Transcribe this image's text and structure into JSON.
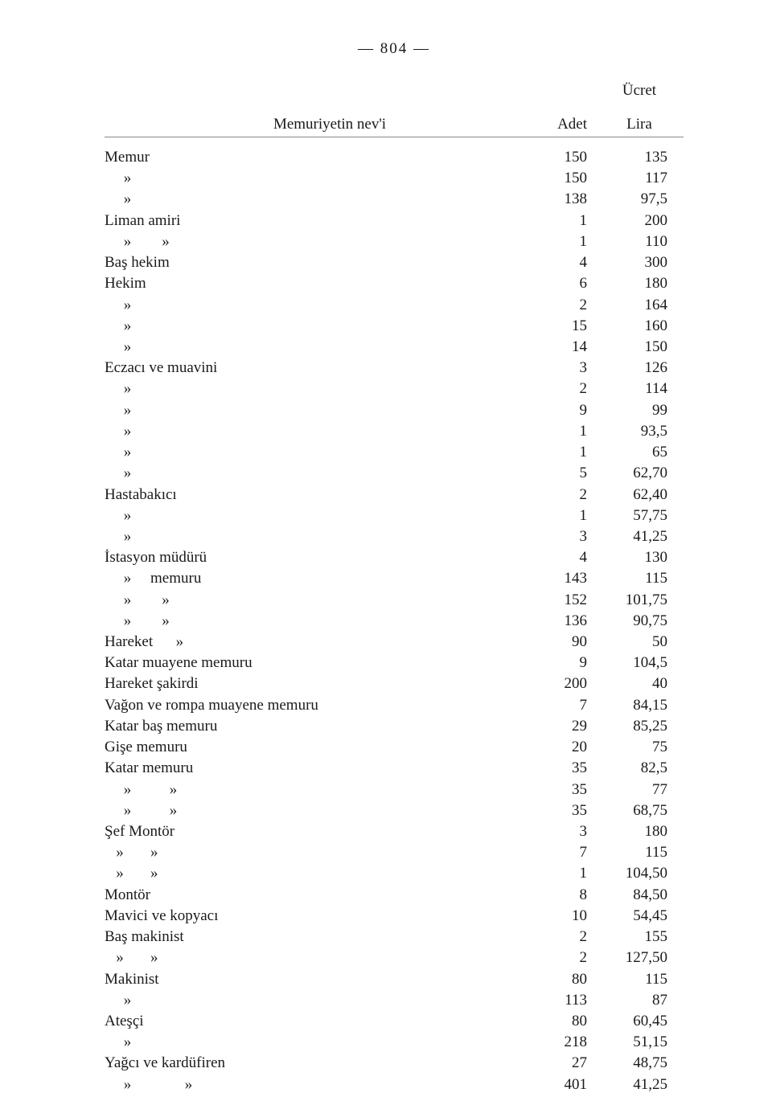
{
  "page": {
    "number": "— 804 —",
    "header": {
      "title": "Memuriyetin nev'i",
      "adet": "Adet",
      "ucret_top": "Ücret",
      "lira": "Lira"
    }
  },
  "rows": [
    {
      "name": "Memur",
      "adet": "150",
      "lira": "135"
    },
    {
      "name": "     »",
      "adet": "150",
      "lira": "117"
    },
    {
      "name": "     »",
      "adet": "138",
      "lira": "97,5"
    },
    {
      "name": "Liman amiri",
      "adet": "1",
      "lira": "200"
    },
    {
      "name": "     »        »",
      "adet": "1",
      "lira": "110"
    },
    {
      "name": "Baş hekim",
      "adet": "4",
      "lira": "300"
    },
    {
      "name": "Hekim",
      "adet": "6",
      "lira": "180"
    },
    {
      "name": "     »",
      "adet": "2",
      "lira": "164"
    },
    {
      "name": "     »",
      "adet": "15",
      "lira": "160"
    },
    {
      "name": "     »",
      "adet": "14",
      "lira": "150"
    },
    {
      "name": "Eczacı ve muavini",
      "adet": "3",
      "lira": "126"
    },
    {
      "name": "     »",
      "adet": "2",
      "lira": "114"
    },
    {
      "name": "     »",
      "adet": "9",
      "lira": "99"
    },
    {
      "name": "     »",
      "adet": "1",
      "lira": "93,5"
    },
    {
      "name": "     »",
      "adet": "1",
      "lira": "65"
    },
    {
      "name": "     »",
      "adet": "5",
      "lira": "62,70"
    },
    {
      "name": "Hastabakıcı",
      "adet": "2",
      "lira": "62,40"
    },
    {
      "name": "     »",
      "adet": "1",
      "lira": "57,75"
    },
    {
      "name": "     »",
      "adet": "3",
      "lira": "41,25"
    },
    {
      "name": "İstasyon müdürü",
      "adet": "4",
      "lira": "130"
    },
    {
      "name": "     »     memuru",
      "adet": "143",
      "lira": "115"
    },
    {
      "name": "     »        »",
      "adet": "152",
      "lira": "101,75"
    },
    {
      "name": "     »        »",
      "adet": "136",
      "lira": "90,75"
    },
    {
      "name": "Hareket      »",
      "adet": "90",
      "lira": "50"
    },
    {
      "name": "Katar muayene memuru",
      "adet": "9",
      "lira": "104,5"
    },
    {
      "name": "Hareket şakirdi",
      "adet": "200",
      "lira": "40"
    },
    {
      "name": "Vağon ve rompa muayene memuru",
      "adet": "7",
      "lira": "84,15"
    },
    {
      "name": "Katar baş memuru",
      "adet": "29",
      "lira": "85,25"
    },
    {
      "name": "Gişe memuru",
      "adet": "20",
      "lira": "75"
    },
    {
      "name": "Katar memuru",
      "adet": "35",
      "lira": "82,5"
    },
    {
      "name": "     »          »",
      "adet": "35",
      "lira": "77"
    },
    {
      "name": "     »          »",
      "adet": "35",
      "lira": "68,75"
    },
    {
      "name": "Şef Montör",
      "adet": "3",
      "lira": "180"
    },
    {
      "name": "   »       »",
      "adet": "7",
      "lira": "115"
    },
    {
      "name": "   »       »",
      "adet": "1",
      "lira": "104,50"
    },
    {
      "name": "Montör",
      "adet": "8",
      "lira": "84,50"
    },
    {
      "name": "Mavici ve kopyacı",
      "adet": "10",
      "lira": "54,45"
    },
    {
      "name": "Baş makinist",
      "adet": "2",
      "lira": "155"
    },
    {
      "name": "   »       »",
      "adet": "2",
      "lira": "127,50"
    },
    {
      "name": "Makinist",
      "adet": "80",
      "lira": "115"
    },
    {
      "name": "     »",
      "adet": "113",
      "lira": "87"
    },
    {
      "name": "Ateşçi",
      "adet": "80",
      "lira": "60,45"
    },
    {
      "name": "     »",
      "adet": "218",
      "lira": "51,15"
    },
    {
      "name": "Yağcı ve kardüfiren",
      "adet": "27",
      "lira": "48,75"
    },
    {
      "name": "     »              »",
      "adet": "401",
      "lira": "41,25"
    }
  ],
  "style": {
    "background_color": "#ffffff",
    "text_color": "#1a1a1a",
    "font_family": "Georgia, Times New Roman, serif",
    "body_fontsize": 19,
    "line_height": 1.38,
    "rule_color": "#888888",
    "col_widths": {
      "name": "flex",
      "adet": 90,
      "lira": 110
    }
  }
}
